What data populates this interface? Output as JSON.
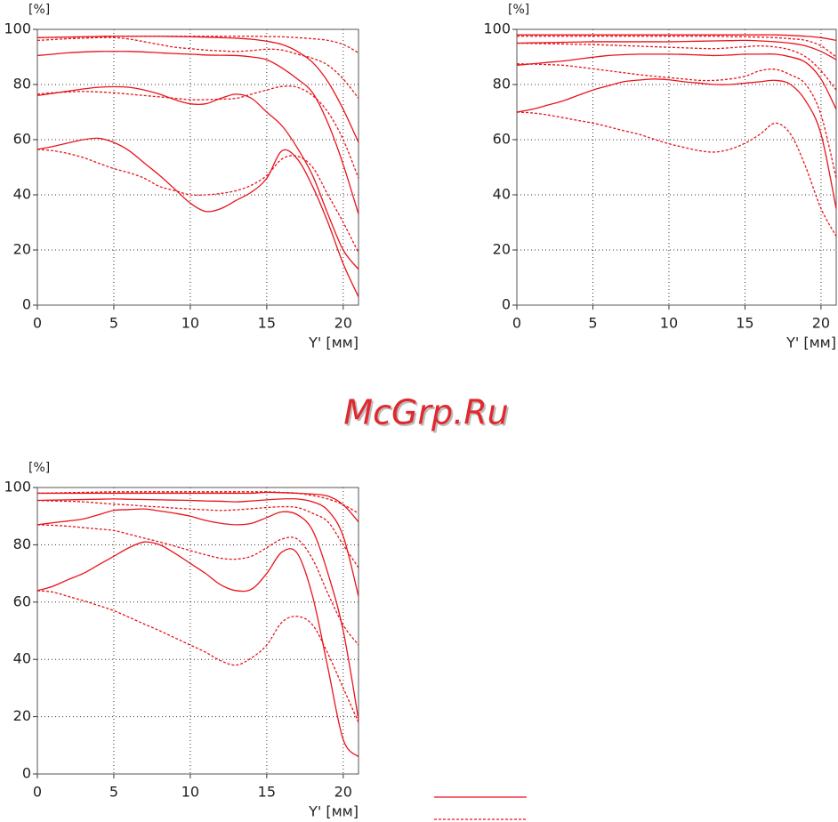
{
  "watermark": "McGrp.Ru",
  "chart_data": [
    {
      "type": "line",
      "ylabel": "[%]",
      "xlabel": "Y' [мм]",
      "x": [
        0,
        1,
        2,
        3,
        4,
        5,
        6,
        7,
        8,
        9,
        10,
        11,
        12,
        13,
        14,
        15,
        16,
        17,
        18,
        19,
        20,
        21
      ],
      "xlim": [
        0,
        21
      ],
      "xticks": [
        0,
        5,
        10,
        15,
        20
      ],
      "ylim": [
        0,
        100
      ],
      "yticks": [
        0,
        20,
        40,
        60,
        80,
        100
      ],
      "grid": true,
      "series": [
        {
          "color": "#e8141c",
          "dashed": false,
          "values": [
            97,
            97.1,
            97.2,
            97.3,
            97.4,
            97.5,
            97.5,
            97.5,
            97.5,
            97.4,
            97.3,
            97.2,
            97,
            96.8,
            96.4,
            95.7,
            94.5,
            92,
            88,
            81,
            71,
            59
          ]
        },
        {
          "color": "#e8141c",
          "dashed": true,
          "values": [
            97,
            97.1,
            97.2,
            97.3,
            97.4,
            97.5,
            97.5,
            97.5,
            97.5,
            97.5,
            97.5,
            97.5,
            97.5,
            97.5,
            97.5,
            97.4,
            97.3,
            97,
            96.6,
            96,
            94.5,
            91.5
          ]
        },
        {
          "color": "#e8141c",
          "dashed": false,
          "values": [
            90.5,
            91,
            91.5,
            91.8,
            92,
            92,
            92,
            91.8,
            91.5,
            91.2,
            91,
            90.7,
            90.6,
            90.5,
            90,
            89,
            86,
            82,
            77,
            66,
            51,
            33
          ]
        },
        {
          "color": "#e8141c",
          "dashed": true,
          "values": [
            96,
            96.3,
            96.6,
            96.8,
            97,
            97,
            96.5,
            95.5,
            94.5,
            93.5,
            93,
            92.5,
            92.2,
            92,
            92.3,
            92.8,
            92.5,
            91,
            89.5,
            87,
            82,
            75
          ]
        },
        {
          "color": "#e8141c",
          "dashed": false,
          "values": [
            76,
            76.8,
            77.6,
            78.4,
            79,
            79.2,
            79,
            78,
            76.5,
            74.5,
            73,
            73,
            75,
            76.5,
            75,
            70,
            65,
            57,
            47,
            33,
            20,
            13
          ]
        },
        {
          "color": "#e8141c",
          "dashed": true,
          "values": [
            76.5,
            77,
            77.3,
            77.5,
            77.3,
            77,
            76.5,
            76,
            75.5,
            75,
            74.5,
            74.5,
            74.7,
            75,
            76.5,
            78,
            79.3,
            79,
            76,
            70,
            60,
            46
          ]
        },
        {
          "color": "#e8141c",
          "dashed": false,
          "values": [
            56.5,
            57.5,
            58.8,
            60,
            60.5,
            59,
            56,
            51.5,
            47,
            42,
            37,
            34,
            35,
            38,
            41,
            46,
            56,
            53,
            43,
            30,
            15,
            3
          ]
        },
        {
          "color": "#e8141c",
          "dashed": true,
          "values": [
            56.5,
            56,
            55,
            53.5,
            51.5,
            49.5,
            48,
            46,
            43,
            41.5,
            40,
            40,
            40.5,
            41.5,
            43.5,
            47,
            53,
            54,
            50,
            40,
            30,
            19
          ]
        }
      ]
    },
    {
      "type": "line",
      "ylabel": "[%]",
      "xlabel": "Y' [мм]",
      "x": [
        0,
        1,
        2,
        3,
        4,
        5,
        6,
        7,
        8,
        9,
        10,
        11,
        12,
        13,
        14,
        15,
        16,
        17,
        18,
        19,
        20,
        21
      ],
      "xlim": [
        0,
        21
      ],
      "xticks": [
        0,
        5,
        10,
        15,
        20
      ],
      "ylim": [
        0,
        100
      ],
      "yticks": [
        0,
        20,
        40,
        60,
        80,
        100
      ],
      "grid": true,
      "series": [
        {
          "color": "#e8141c",
          "dashed": false,
          "values": [
            98,
            98,
            98,
            98,
            98,
            98,
            98,
            98,
            98,
            98,
            98,
            98,
            98,
            98,
            98,
            98,
            98,
            98,
            97.8,
            97.5,
            97,
            96
          ]
        },
        {
          "color": "#e8141c",
          "dashed": true,
          "values": [
            97.5,
            97.5,
            97.5,
            97.5,
            97.5,
            97.5,
            97.5,
            97.5,
            97.5,
            97.5,
            97.5,
            97.5,
            97.5,
            97.5,
            97.4,
            97.3,
            97.2,
            97,
            96.6,
            96,
            94,
            90
          ]
        },
        {
          "color": "#e8141c",
          "dashed": false,
          "values": [
            95,
            95.1,
            95.2,
            95.3,
            95.4,
            95.5,
            95.5,
            95.5,
            95.5,
            95.5,
            95.5,
            95.6,
            95.7,
            95.8,
            95.9,
            96,
            95.8,
            95.5,
            95,
            94,
            92,
            89
          ]
        },
        {
          "color": "#e8141c",
          "dashed": true,
          "values": [
            95,
            94.9,
            94.8,
            94.7,
            94.6,
            94.5,
            94.3,
            94.1,
            93.9,
            93.7,
            93.5,
            93.3,
            93.1,
            93,
            93.3,
            93.7,
            94,
            93.6,
            92.5,
            90,
            85,
            78
          ]
        },
        {
          "color": "#e8141c",
          "dashed": false,
          "values": [
            87,
            87.5,
            88,
            88.5,
            89.2,
            89.9,
            90.5,
            90.8,
            91,
            91,
            91,
            90.9,
            90.7,
            90.5,
            90.7,
            91,
            91,
            91,
            90,
            88,
            82,
            71
          ]
        },
        {
          "color": "#e8141c",
          "dashed": true,
          "values": [
            87.5,
            87.4,
            87.2,
            87,
            86.4,
            85.7,
            85,
            84.3,
            83.6,
            83,
            82.5,
            82,
            81.5,
            81.5,
            82,
            83,
            85,
            85.5,
            83.5,
            80,
            69,
            46
          ]
        },
        {
          "color": "#e8141c",
          "dashed": false,
          "values": [
            70,
            71,
            72.5,
            74,
            76,
            78,
            79.5,
            81,
            81.6,
            82,
            81.7,
            81,
            80.5,
            80,
            80,
            80.5,
            81,
            81.5,
            80,
            74,
            62,
            35
          ]
        },
        {
          "color": "#e8141c",
          "dashed": true,
          "values": [
            70,
            69.7,
            69,
            68,
            67,
            66,
            64.7,
            63.3,
            62,
            60.2,
            58.5,
            57.2,
            56,
            55.5,
            56.5,
            58.7,
            62,
            66,
            62,
            50,
            35,
            25
          ]
        }
      ]
    },
    {
      "type": "line",
      "ylabel": "[%]",
      "xlabel": "Y' [мм]",
      "x": [
        0,
        1,
        2,
        3,
        4,
        5,
        6,
        7,
        8,
        9,
        10,
        11,
        12,
        13,
        14,
        15,
        16,
        17,
        18,
        19,
        20,
        21
      ],
      "xlim": [
        0,
        21
      ],
      "xticks": [
        0,
        5,
        10,
        15,
        20
      ],
      "ylim": [
        0,
        100
      ],
      "yticks": [
        0,
        20,
        40,
        60,
        80,
        100
      ],
      "grid": true,
      "series": [
        {
          "color": "#e8141c",
          "dashed": false,
          "values": [
            98,
            98,
            98,
            98,
            98,
            98,
            98,
            98,
            98,
            98,
            98,
            98,
            98,
            98,
            98,
            98.3,
            98.2,
            98,
            97.7,
            97,
            94,
            88
          ]
        },
        {
          "color": "#e8141c",
          "dashed": true,
          "values": [
            98,
            98.1,
            98.2,
            98.3,
            98.4,
            98.5,
            98.5,
            98.5,
            98.5,
            98.5,
            98.5,
            98.5,
            98.5,
            98.5,
            98.5,
            98.5,
            98.3,
            98,
            97.2,
            96,
            94,
            91
          ]
        },
        {
          "color": "#e8141c",
          "dashed": false,
          "values": [
            95.5,
            95.6,
            95.7,
            95.8,
            95.9,
            96,
            95.9,
            95.8,
            95.7,
            95.6,
            95.5,
            95.3,
            95.2,
            95,
            95.3,
            95.7,
            96,
            96,
            95,
            92,
            83,
            62
          ]
        },
        {
          "color": "#e8141c",
          "dashed": true,
          "values": [
            95.5,
            95.3,
            95.2,
            95,
            94.6,
            94.2,
            93.9,
            93.5,
            93.2,
            92.8,
            92.5,
            92.2,
            92,
            92.2,
            92.6,
            93,
            93.3,
            93,
            91,
            88,
            80,
            72
          ]
        },
        {
          "color": "#e8141c",
          "dashed": false,
          "values": [
            87,
            87.7,
            88.3,
            89,
            90.5,
            92,
            92.3,
            92.5,
            91.8,
            91,
            90,
            88.5,
            87.5,
            87,
            87.5,
            89.5,
            91.5,
            90.5,
            85,
            70,
            50,
            19
          ]
        },
        {
          "color": "#e8141c",
          "dashed": true,
          "values": [
            87,
            86.8,
            86.5,
            86,
            85.5,
            85,
            83.7,
            82.3,
            81,
            79.5,
            78,
            76.5,
            75.3,
            75,
            76,
            79,
            82,
            82,
            75,
            63,
            52,
            45
          ]
        },
        {
          "color": "#e8141c",
          "dashed": false,
          "values": [
            64,
            65.5,
            67.8,
            70,
            73,
            76,
            79,
            81,
            80,
            77,
            73.5,
            70,
            66,
            64,
            64.5,
            70,
            77.5,
            77,
            62,
            37,
            12,
            6
          ]
        },
        {
          "color": "#e8141c",
          "dashed": true,
          "values": [
            64,
            63.5,
            62,
            60.5,
            58.8,
            57,
            54.7,
            52.3,
            50,
            47.5,
            45,
            42.5,
            39.5,
            38,
            40.5,
            45,
            53,
            55,
            52,
            42,
            30,
            18
          ]
        }
      ]
    }
  ]
}
